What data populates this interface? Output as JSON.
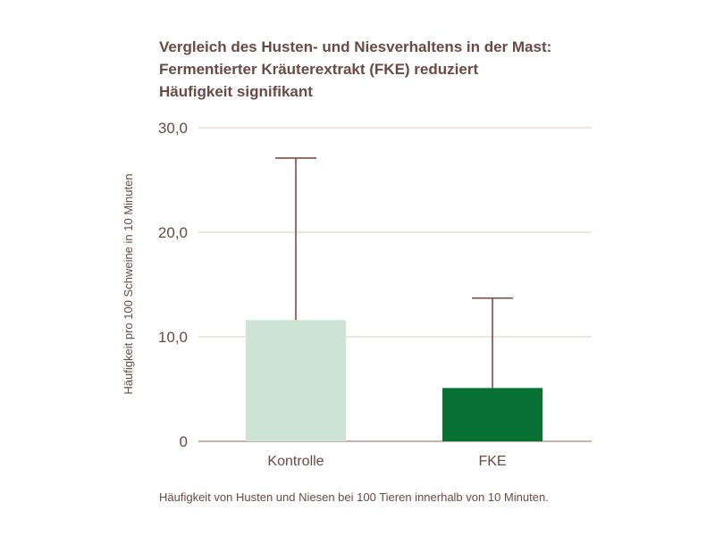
{
  "title_lines": [
    "Vergleich des Husten- und Niesverhaltens in der Mast:",
    "Fermentierter Kräuterextrakt (FKE) reduziert",
    "Häufigkeit signifikant"
  ],
  "caption": "Häufigkeit von Husten und Niesen bei 100 Tieren innerhalb von 10 Minuten.",
  "colors": {
    "text": "#6b4a43",
    "grid": "#e3c9b8",
    "axis": "#b89a88",
    "kontrolle": "#cde4d5",
    "fke": "#077233",
    "errorbar": "#7a4e46"
  },
  "chart_data": {
    "type": "bar",
    "title": "Vergleich des Husten- und Niesverhaltens in der Mast: Fermentierter Kräuterextrakt (FKE) reduziert Häufigkeit signifikant",
    "xlabel": "",
    "ylabel": "Häufigkeit pro 100 Schweine in 10 Minuten",
    "ylim": [
      0,
      30
    ],
    "yticks": [
      {
        "value": 0,
        "label": "0"
      },
      {
        "value": 10,
        "label": "10,0"
      },
      {
        "value": 20,
        "label": "20,0"
      },
      {
        "value": 30,
        "label": "30,0"
      }
    ],
    "grid": true,
    "categories": [
      "Kontrolle",
      "FKE"
    ],
    "values": [
      11.6,
      5.1
    ],
    "error_upper": [
      27.1,
      13.7
    ]
  }
}
